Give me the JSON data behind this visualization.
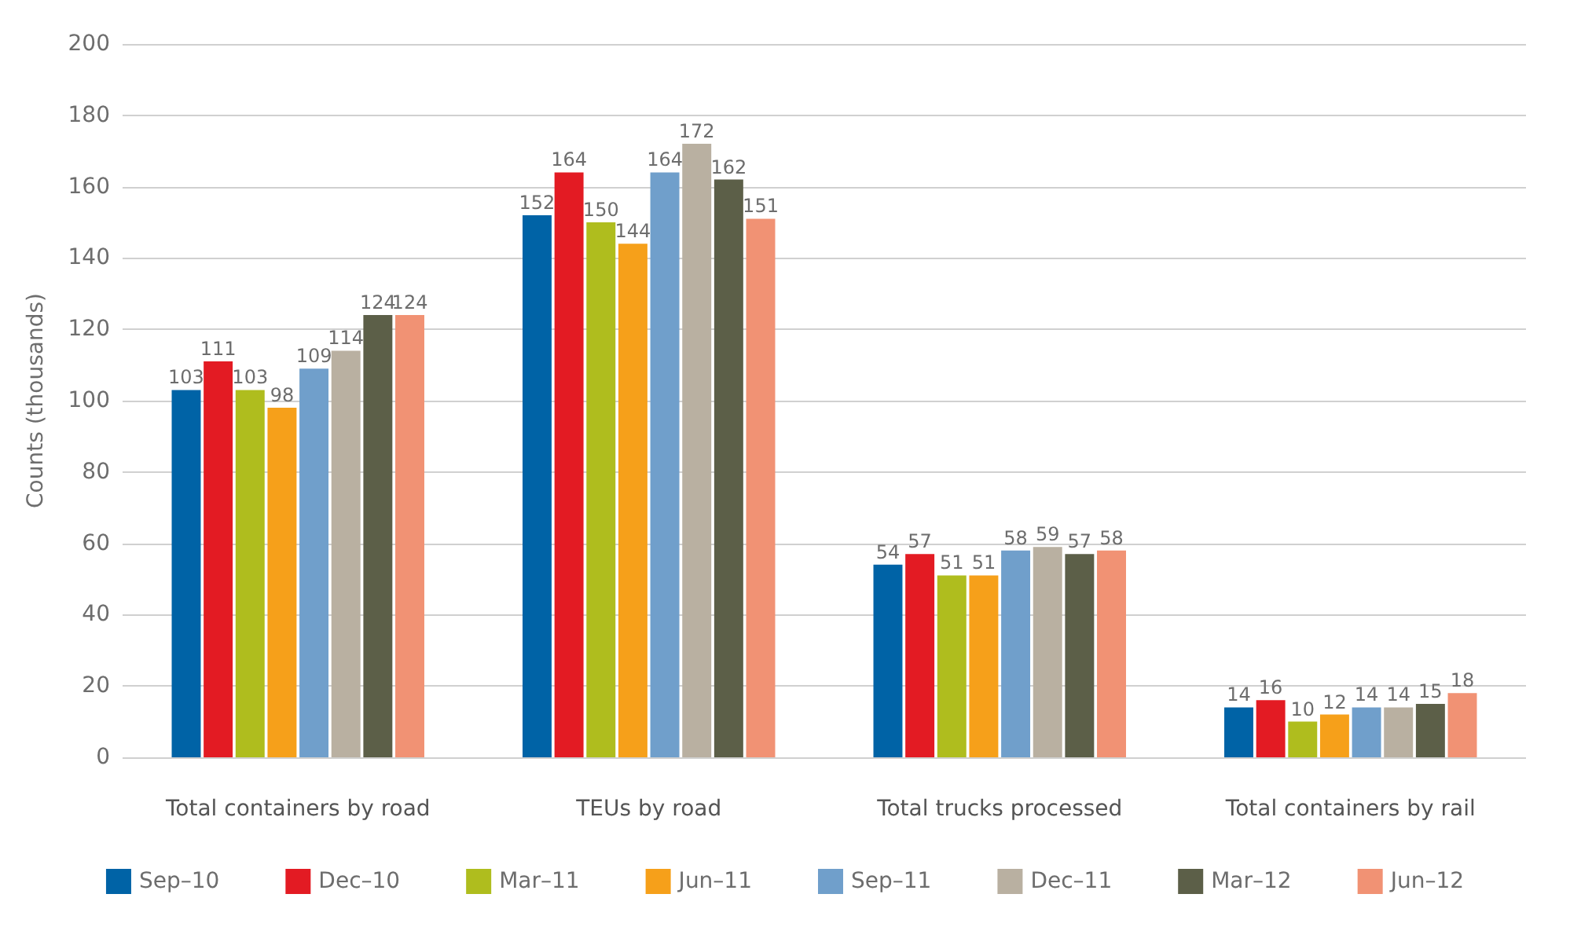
{
  "chart_data": {
    "type": "bar",
    "ylabel": "Counts (thousands)",
    "categories": [
      "Total containers by road",
      "TEUs by road",
      "Total trucks processed",
      "Total containers by rail"
    ],
    "series": [
      {
        "name": "Sep–10",
        "color": "#0063a6",
        "values": [
          103,
          152,
          54,
          14
        ]
      },
      {
        "name": "Dec–10",
        "color": "#e31b23",
        "values": [
          111,
          164,
          57,
          16
        ]
      },
      {
        "name": "Mar–11",
        "color": "#afbd1e",
        "values": [
          103,
          150,
          51,
          10
        ]
      },
      {
        "name": "Jun–11",
        "color": "#f6a01a",
        "values": [
          98,
          144,
          51,
          12
        ]
      },
      {
        "name": "Sep–11",
        "color": "#709fcb",
        "values": [
          109,
          164,
          58,
          14
        ]
      },
      {
        "name": "Dec–11",
        "color": "#b9b0a1",
        "values": [
          114,
          172,
          59,
          14
        ]
      },
      {
        "name": "Mar–12",
        "color": "#5c5f48",
        "values": [
          124,
          162,
          57,
          15
        ]
      },
      {
        "name": "Jun–12",
        "color": "#f19274",
        "values": [
          124,
          151,
          58,
          18
        ]
      }
    ],
    "ylim": [
      0,
      200
    ],
    "yticks": [
      0,
      20,
      40,
      60,
      80,
      100,
      120,
      140,
      160,
      180,
      200
    ],
    "grid": true,
    "legend": "bottom",
    "data_labels": true
  }
}
